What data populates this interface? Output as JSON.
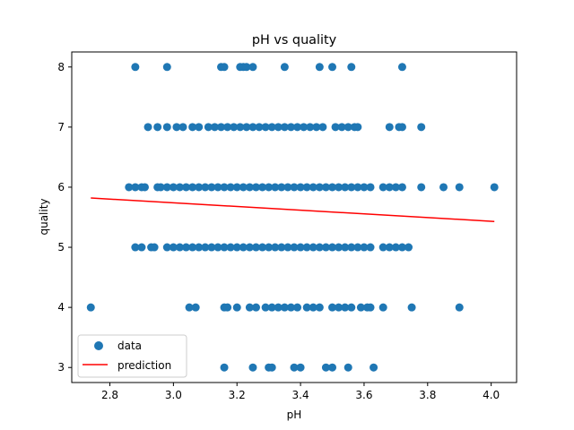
{
  "chart_data": {
    "type": "scatter",
    "title": "pH vs quality",
    "xlabel": "pH",
    "ylabel": "quality",
    "xlim": [
      2.68,
      4.08
    ],
    "ylim": [
      2.75,
      8.25
    ],
    "xticks": [
      "2.8",
      "3.0",
      "3.2",
      "3.4",
      "3.6",
      "3.8",
      "4.0"
    ],
    "yticks": [
      "3",
      "4",
      "5",
      "6",
      "7",
      "8"
    ],
    "grid": false,
    "legend_position": "lower-left",
    "colors": {
      "data": "#1f77b4",
      "prediction": "#ff0000"
    },
    "series": [
      {
        "name": "data",
        "type": "scatter",
        "points": [
          [
            2.88,
            8
          ],
          [
            2.98,
            8
          ],
          [
            3.15,
            8
          ],
          [
            3.16,
            8
          ],
          [
            3.21,
            8
          ],
          [
            3.22,
            8
          ],
          [
            3.23,
            8
          ],
          [
            3.25,
            8
          ],
          [
            3.35,
            8
          ],
          [
            3.46,
            8
          ],
          [
            3.5,
            8
          ],
          [
            3.56,
            8
          ],
          [
            3.72,
            8
          ],
          [
            2.92,
            7
          ],
          [
            2.95,
            7
          ],
          [
            2.98,
            7
          ],
          [
            3.01,
            7
          ],
          [
            3.03,
            7
          ],
          [
            3.06,
            7
          ],
          [
            3.08,
            7
          ],
          [
            3.11,
            7
          ],
          [
            3.13,
            7
          ],
          [
            3.15,
            7
          ],
          [
            3.17,
            7
          ],
          [
            3.19,
            7
          ],
          [
            3.21,
            7
          ],
          [
            3.23,
            7
          ],
          [
            3.25,
            7
          ],
          [
            3.27,
            7
          ],
          [
            3.29,
            7
          ],
          [
            3.31,
            7
          ],
          [
            3.33,
            7
          ],
          [
            3.35,
            7
          ],
          [
            3.37,
            7
          ],
          [
            3.39,
            7
          ],
          [
            3.41,
            7
          ],
          [
            3.43,
            7
          ],
          [
            3.45,
            7
          ],
          [
            3.47,
            7
          ],
          [
            3.51,
            7
          ],
          [
            3.53,
            7
          ],
          [
            3.55,
            7
          ],
          [
            3.57,
            7
          ],
          [
            3.58,
            7
          ],
          [
            3.68,
            7
          ],
          [
            3.71,
            7
          ],
          [
            3.72,
            7
          ],
          [
            3.78,
            7
          ],
          [
            2.86,
            6
          ],
          [
            2.88,
            6
          ],
          [
            2.9,
            6
          ],
          [
            2.91,
            6
          ],
          [
            2.95,
            6
          ],
          [
            2.96,
            6
          ],
          [
            2.98,
            6
          ],
          [
            3.0,
            6
          ],
          [
            3.02,
            6
          ],
          [
            3.04,
            6
          ],
          [
            3.06,
            6
          ],
          [
            3.08,
            6
          ],
          [
            3.1,
            6
          ],
          [
            3.12,
            6
          ],
          [
            3.14,
            6
          ],
          [
            3.16,
            6
          ],
          [
            3.18,
            6
          ],
          [
            3.2,
            6
          ],
          [
            3.22,
            6
          ],
          [
            3.24,
            6
          ],
          [
            3.26,
            6
          ],
          [
            3.28,
            6
          ],
          [
            3.3,
            6
          ],
          [
            3.32,
            6
          ],
          [
            3.34,
            6
          ],
          [
            3.36,
            6
          ],
          [
            3.38,
            6
          ],
          [
            3.4,
            6
          ],
          [
            3.42,
            6
          ],
          [
            3.44,
            6
          ],
          [
            3.46,
            6
          ],
          [
            3.48,
            6
          ],
          [
            3.5,
            6
          ],
          [
            3.52,
            6
          ],
          [
            3.54,
            6
          ],
          [
            3.56,
            6
          ],
          [
            3.58,
            6
          ],
          [
            3.6,
            6
          ],
          [
            3.62,
            6
          ],
          [
            3.66,
            6
          ],
          [
            3.68,
            6
          ],
          [
            3.7,
            6
          ],
          [
            3.72,
            6
          ],
          [
            3.78,
            6
          ],
          [
            3.85,
            6
          ],
          [
            3.9,
            6
          ],
          [
            4.01,
            6
          ],
          [
            2.88,
            5
          ],
          [
            2.9,
            5
          ],
          [
            2.93,
            5
          ],
          [
            2.94,
            5
          ],
          [
            2.98,
            5
          ],
          [
            3.0,
            5
          ],
          [
            3.02,
            5
          ],
          [
            3.04,
            5
          ],
          [
            3.06,
            5
          ],
          [
            3.08,
            5
          ],
          [
            3.1,
            5
          ],
          [
            3.12,
            5
          ],
          [
            3.14,
            5
          ],
          [
            3.16,
            5
          ],
          [
            3.18,
            5
          ],
          [
            3.2,
            5
          ],
          [
            3.22,
            5
          ],
          [
            3.24,
            5
          ],
          [
            3.26,
            5
          ],
          [
            3.28,
            5
          ],
          [
            3.3,
            5
          ],
          [
            3.32,
            5
          ],
          [
            3.34,
            5
          ],
          [
            3.36,
            5
          ],
          [
            3.38,
            5
          ],
          [
            3.4,
            5
          ],
          [
            3.42,
            5
          ],
          [
            3.44,
            5
          ],
          [
            3.46,
            5
          ],
          [
            3.48,
            5
          ],
          [
            3.5,
            5
          ],
          [
            3.52,
            5
          ],
          [
            3.54,
            5
          ],
          [
            3.56,
            5
          ],
          [
            3.58,
            5
          ],
          [
            3.6,
            5
          ],
          [
            3.62,
            5
          ],
          [
            3.66,
            5
          ],
          [
            3.68,
            5
          ],
          [
            3.7,
            5
          ],
          [
            3.72,
            5
          ],
          [
            3.74,
            5
          ],
          [
            2.74,
            4
          ],
          [
            3.05,
            4
          ],
          [
            3.07,
            4
          ],
          [
            3.16,
            4
          ],
          [
            3.17,
            4
          ],
          [
            3.2,
            4
          ],
          [
            3.24,
            4
          ],
          [
            3.26,
            4
          ],
          [
            3.29,
            4
          ],
          [
            3.31,
            4
          ],
          [
            3.33,
            4
          ],
          [
            3.35,
            4
          ],
          [
            3.37,
            4
          ],
          [
            3.39,
            4
          ],
          [
            3.42,
            4
          ],
          [
            3.44,
            4
          ],
          [
            3.46,
            4
          ],
          [
            3.5,
            4
          ],
          [
            3.52,
            4
          ],
          [
            3.54,
            4
          ],
          [
            3.56,
            4
          ],
          [
            3.59,
            4
          ],
          [
            3.61,
            4
          ],
          [
            3.62,
            4
          ],
          [
            3.66,
            4
          ],
          [
            3.75,
            4
          ],
          [
            3.9,
            4
          ],
          [
            3.16,
            3
          ],
          [
            3.25,
            3
          ],
          [
            3.3,
            3
          ],
          [
            3.31,
            3
          ],
          [
            3.38,
            3
          ],
          [
            3.4,
            3
          ],
          [
            3.48,
            3
          ],
          [
            3.5,
            3
          ],
          [
            3.55,
            3
          ],
          [
            3.63,
            3
          ]
        ]
      },
      {
        "name": "prediction",
        "type": "line",
        "points": [
          [
            2.74,
            5.82
          ],
          [
            4.01,
            5.43
          ]
        ]
      }
    ]
  }
}
